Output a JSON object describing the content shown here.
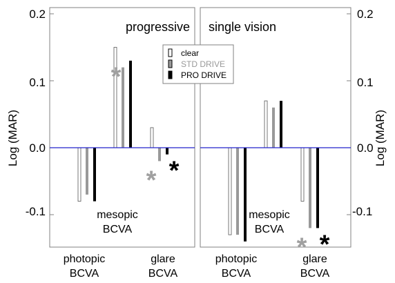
{
  "chart_data": [
    {
      "type": "bar",
      "title": "progressive",
      "ylabel": "Log (MAR)",
      "ylim": [
        -0.15,
        0.2
      ],
      "yticks": [
        "0.2",
        "0.1",
        "0.0",
        "-0.1"
      ],
      "categories": [
        {
          "line1": "photopic",
          "line2": "BCVA"
        },
        {
          "line1": "mesopic",
          "line2": "BCVA"
        },
        {
          "line1": "glare",
          "line2": "BCVA"
        }
      ],
      "series": [
        {
          "name": "clear",
          "color": "#ffffff",
          "values": [
            -0.08,
            0.15,
            0.03
          ]
        },
        {
          "name": "STD DRIVE",
          "color": "#999999",
          "values": [
            -0.07,
            0.12,
            -0.02
          ]
        },
        {
          "name": "PRO DRIVE",
          "color": "#000000",
          "values": [
            -0.08,
            0.13,
            -0.01
          ]
        }
      ],
      "significance": [
        {
          "category": 1,
          "series": 1,
          "symbol": "*",
          "color": "#a0a0a0"
        },
        {
          "category": 2,
          "series": 1,
          "symbol": "*",
          "color": "#a0a0a0"
        },
        {
          "category": 2,
          "series": 2,
          "symbol": "*",
          "color": "#000000"
        }
      ],
      "legend": {
        "placement": "top-right",
        "entries": [
          {
            "label": "clear",
            "text_color": "#000000",
            "swatch": "#ffffff"
          },
          {
            "label": "STD DRIVE",
            "text_color": "#999999",
            "swatch": "#999999"
          },
          {
            "label": "PRO DRIVE",
            "text_color": "#000000",
            "swatch": "#000000"
          }
        ]
      }
    },
    {
      "type": "bar",
      "title": "single vision",
      "ylabel": "Log (MAR)",
      "ylim": [
        -0.15,
        0.2
      ],
      "yticks": [
        "0.2",
        "0.1",
        "0.0",
        "-0.1"
      ],
      "categories": [
        {
          "line1": "photopic",
          "line2": "BCVA"
        },
        {
          "line1": "mesopic",
          "line2": "BCVA"
        },
        {
          "line1": "glare",
          "line2": "BCVA"
        }
      ],
      "series": [
        {
          "name": "clear",
          "color": "#ffffff",
          "values": [
            -0.13,
            0.07,
            -0.08
          ]
        },
        {
          "name": "STD DRIVE",
          "color": "#999999",
          "values": [
            -0.13,
            0.06,
            -0.12
          ]
        },
        {
          "name": "PRO DRIVE",
          "color": "#000000",
          "values": [
            -0.14,
            0.07,
            -0.12
          ]
        }
      ],
      "significance": [
        {
          "category": 2,
          "series": 1,
          "symbol": "*",
          "color": "#a0a0a0"
        },
        {
          "category": 2,
          "series": 2,
          "symbol": "*",
          "color": "#000000"
        }
      ]
    }
  ],
  "colors": {
    "zero_line": "#2222cc",
    "frame": "#808080"
  }
}
